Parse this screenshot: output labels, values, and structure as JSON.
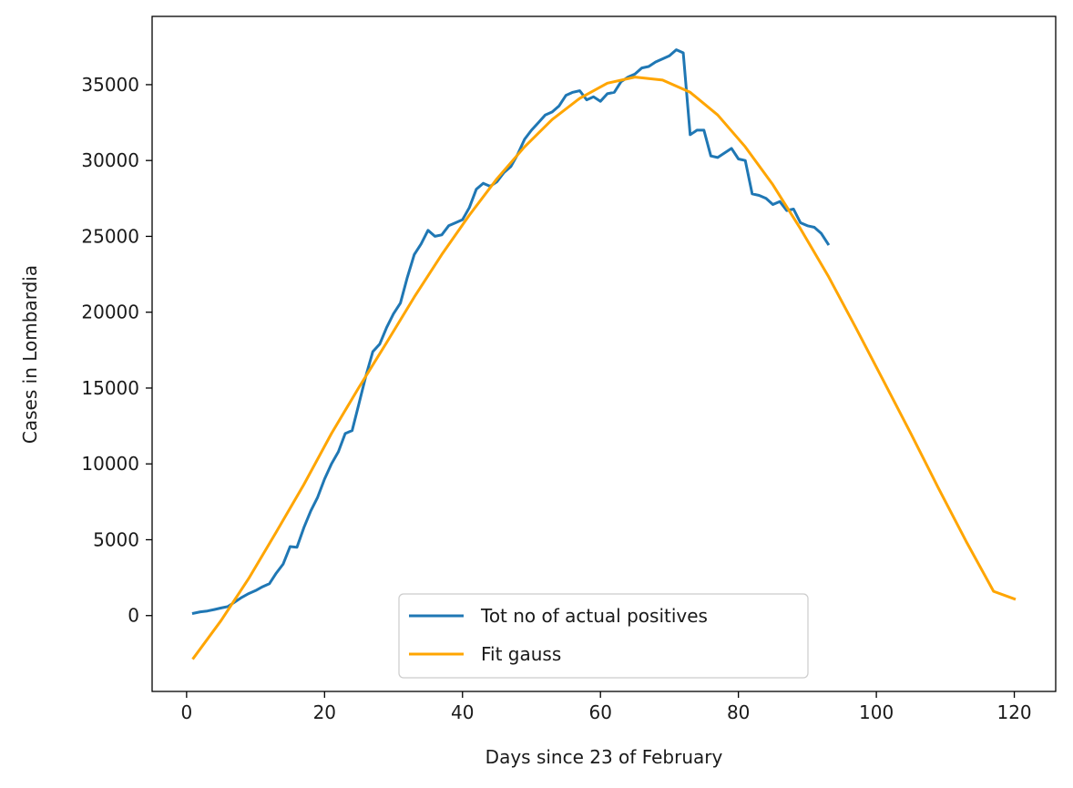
{
  "chart_data": {
    "type": "line",
    "title": "",
    "xlabel": "Days since 23 of February",
    "ylabel": "Cases in Lombardia",
    "xlim": [
      -5,
      126
    ],
    "ylim": [
      -5000,
      39500
    ],
    "xticks": [
      0,
      20,
      40,
      60,
      80,
      100,
      120
    ],
    "yticks": [
      0,
      5000,
      10000,
      15000,
      20000,
      25000,
      30000,
      35000
    ],
    "legend_position": "lower center",
    "series": [
      {
        "name": "Tot no of actual positives",
        "color": "#1f77b4",
        "x": [
          1,
          2,
          3,
          4,
          5,
          6,
          7,
          8,
          9,
          10,
          11,
          12,
          13,
          14,
          15,
          16,
          17,
          18,
          19,
          20,
          21,
          22,
          23,
          24,
          25,
          26,
          27,
          28,
          29,
          30,
          31,
          32,
          33,
          34,
          35,
          36,
          37,
          38,
          39,
          40,
          41,
          42,
          43,
          44,
          45,
          46,
          47,
          48,
          49,
          50,
          51,
          52,
          53,
          54,
          55,
          56,
          57,
          58,
          59,
          60,
          61,
          62,
          63,
          64,
          65,
          66,
          67,
          68,
          69,
          70,
          71,
          72,
          73,
          74,
          75,
          76,
          77,
          78,
          79,
          80,
          81,
          82,
          83,
          84,
          85,
          86,
          87,
          88,
          89,
          90,
          91,
          92,
          93
        ],
        "y": [
          150,
          250,
          300,
          400,
          500,
          600,
          900,
          1200,
          1450,
          1650,
          1900,
          2100,
          2800,
          3400,
          4550,
          4500,
          5800,
          6900,
          7800,
          9000,
          10000,
          10800,
          12000,
          12200,
          14000,
          15800,
          17400,
          17900,
          19000,
          19900,
          20600,
          22300,
          23800,
          24500,
          25400,
          25000,
          25100,
          25700,
          25900,
          26100,
          26900,
          28100,
          28500,
          28300,
          28600,
          29200,
          29600,
          30400,
          31400,
          32000,
          32500,
          33000,
          33200,
          33600,
          34300,
          34500,
          34600,
          34000,
          34200,
          33900,
          34400,
          34500,
          35200,
          35500,
          35700,
          36100,
          36200,
          36500,
          36700,
          36900,
          37300,
          37100,
          31700,
          32000,
          32000,
          30300,
          30200,
          30500,
          30800,
          30100,
          30000,
          27800,
          27700,
          27500,
          27100,
          27300,
          26700,
          26800,
          25900,
          25700,
          25600,
          25200,
          24500
        ]
      },
      {
        "name": "Fit gauss",
        "color": "#ffa500",
        "x": [
          1,
          5,
          9,
          13,
          17,
          21,
          25,
          29,
          33,
          37,
          41,
          45,
          49,
          53,
          57,
          61,
          65,
          69,
          73,
          77,
          81,
          85,
          89,
          93,
          97,
          101,
          105,
          109,
          113,
          117,
          120
        ],
        "y": [
          -2800,
          -330,
          2440,
          5510,
          8640,
          12000,
          15060,
          18000,
          21000,
          23800,
          26400,
          28800,
          30900,
          32700,
          34100,
          35100,
          35500,
          35300,
          34500,
          33000,
          30900,
          28400,
          25500,
          22400,
          19000,
          15500,
          12000,
          8400,
          4900,
          1600,
          1100
        ]
      }
    ]
  }
}
